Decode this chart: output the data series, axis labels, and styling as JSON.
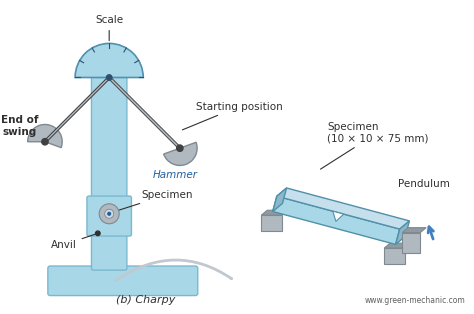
{
  "bg_color": "#ffffff",
  "light_blue": "#a8d8e8",
  "steel_gray": "#b0b8c0",
  "dark_gray": "#808890",
  "text_color_blue": "#2060a0",
  "text_color_dark": "#303030",
  "label_scale": "Scale",
  "label_starting": "Starting position",
  "label_hammer": "Hammer",
  "label_end_swing": "End of\nswing",
  "label_anvil": "Anvil",
  "label_specimen": "Specimen",
  "label_charpy": "(b) Charpy",
  "label_specimen2": "Specimen\n(10 × 10 × 75 mm)",
  "label_pendulum": "Pendulum",
  "label_website": "www.green-mechanic.com",
  "figsize": [
    4.74,
    3.14
  ],
  "dpi": 100
}
